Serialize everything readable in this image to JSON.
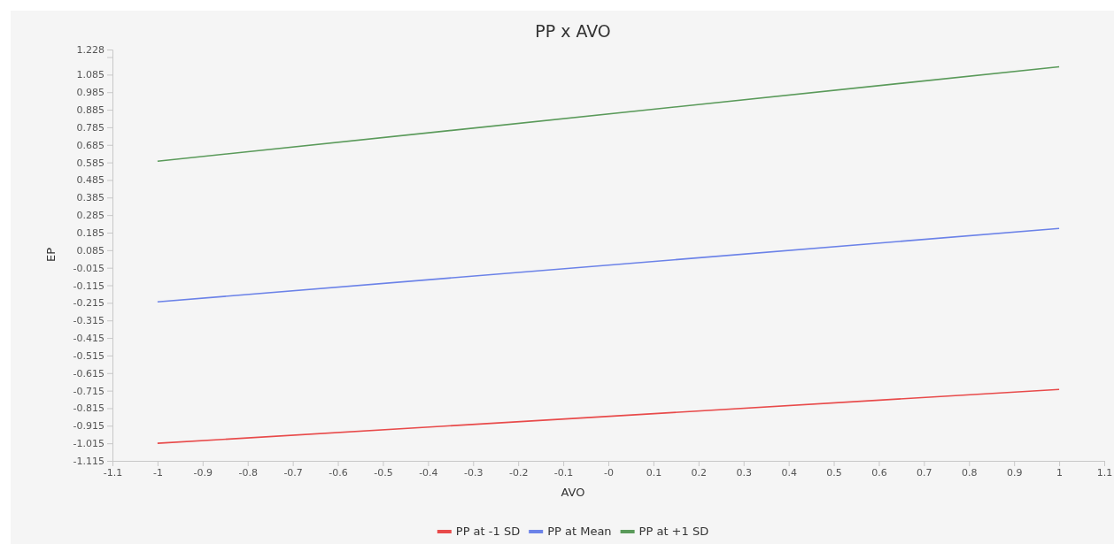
{
  "chart_data": {
    "type": "line",
    "title": "PP x AVO",
    "xlabel": "AVO",
    "ylabel": "EP",
    "x": [
      -1,
      1
    ],
    "series": [
      {
        "name": "PP at -1 SD",
        "color": "#e84a4a",
        "values": [
          -1.015,
          -0.708
        ]
      },
      {
        "name": "PP at Mean",
        "color": "#6b82e8",
        "values": [
          -0.209,
          0.209
        ]
      },
      {
        "name": "PP at +1 SD",
        "color": "#5a9a5a",
        "values": [
          0.592,
          1.13
        ]
      }
    ],
    "xlim": [
      -1.1,
      1.1
    ],
    "xticks": [
      -1.1,
      -1,
      -0.9,
      -0.8,
      -0.7,
      -0.6,
      -0.5,
      -0.4,
      -0.3,
      -0.2,
      -0.1,
      {
        "value": 0,
        "label": "-0"
      },
      0.1,
      0.2,
      0.3,
      0.4,
      0.5,
      0.6,
      0.7,
      0.8,
      0.9,
      1,
      1.1
    ],
    "ylim": [
      -1.115,
      1.228
    ],
    "yticks": [
      -1.115,
      -1.015,
      -0.915,
      -0.815,
      -0.715,
      -0.615,
      -0.515,
      -0.415,
      -0.315,
      -0.215,
      -0.115,
      -0.015,
      0.085,
      0.185,
      0.285,
      0.385,
      0.485,
      0.585,
      0.685,
      0.785,
      0.885,
      0.985,
      1.085,
      {
        "value": 1.185,
        "label": null
      },
      1.228
    ],
    "grid": false,
    "legend": "bottom",
    "marker": "none",
    "line_style": "solid"
  }
}
